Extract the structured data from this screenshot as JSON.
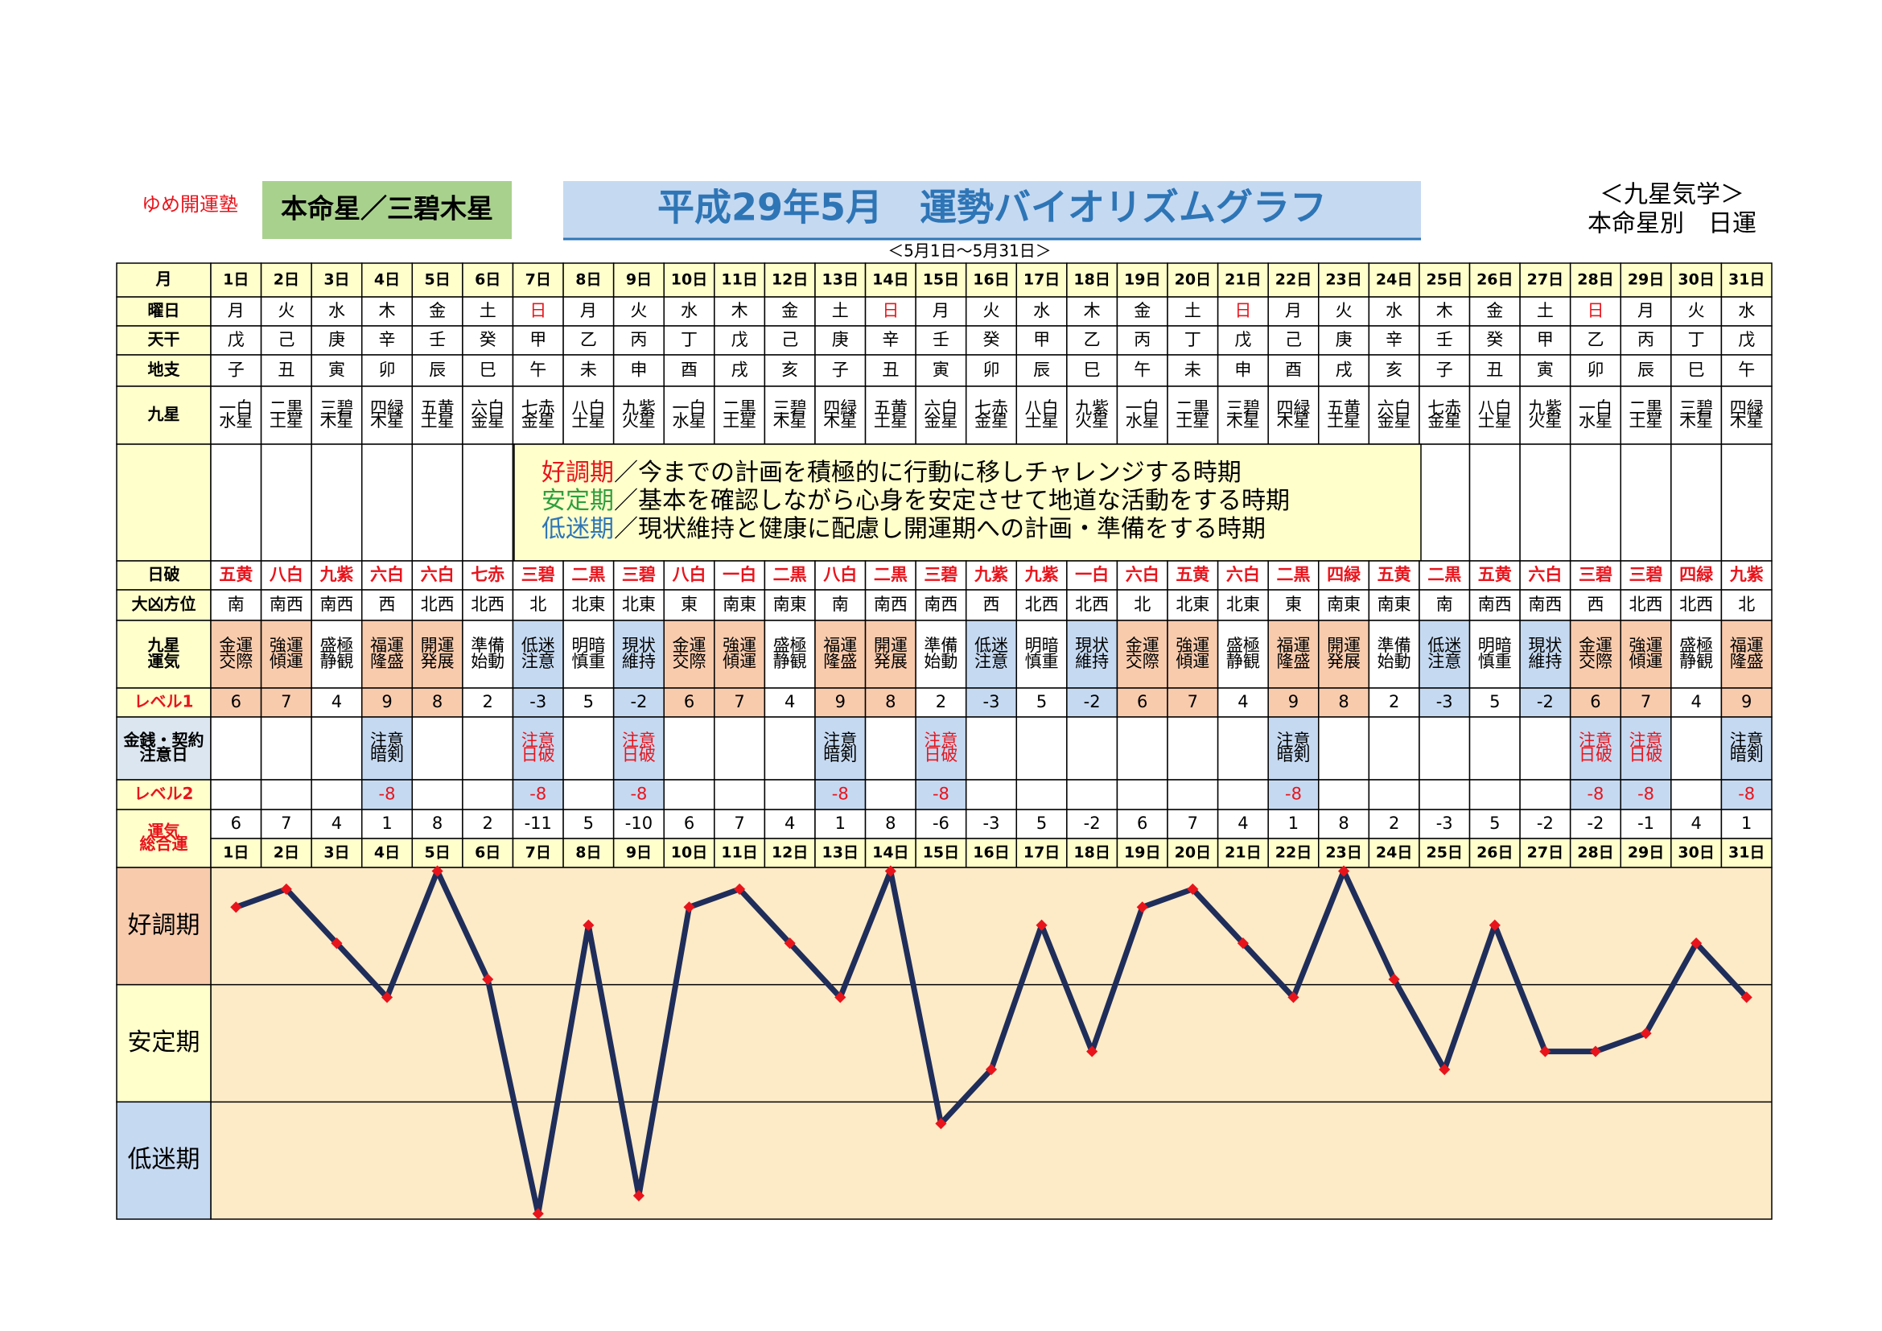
{
  "header": {
    "org": "ゆめ開運塾",
    "honmei": "本命星／三碧木星",
    "title": "平成29年5月　運勢バイオリズムグラフ",
    "period": "＜5月1日～5月31日＞",
    "system": "＜九星気学＞",
    "kind": "本命星別　日運"
  },
  "row_labels": [
    [
      "月"
    ],
    [
      "曜日"
    ],
    [
      "天干"
    ],
    [
      "地支"
    ],
    [
      "九星"
    ],
    [
      "日破"
    ],
    [
      "大凶方位"
    ],
    [
      "九星",
      "運気"
    ],
    [
      "レベル1"
    ],
    [
      "金銭・契約",
      "注意日"
    ],
    [
      "レベル2"
    ],
    [
      "運気",
      "総合運"
    ]
  ],
  "days": [
    "1日",
    "2日",
    "3日",
    "4日",
    "5日",
    "6日",
    "7日",
    "8日",
    "9日",
    "10日",
    "11日",
    "12日",
    "13日",
    "14日",
    "15日",
    "16日",
    "17日",
    "18日",
    "19日",
    "20日",
    "21日",
    "22日",
    "23日",
    "24日",
    "25日",
    "26日",
    "27日",
    "28日",
    "29日",
    "30日",
    "31日"
  ],
  "weekdays": [
    "月",
    "火",
    "水",
    "木",
    "金",
    "土",
    "日",
    "月",
    "火",
    "水",
    "木",
    "金",
    "土",
    "日",
    "月",
    "火",
    "水",
    "木",
    "金",
    "土",
    "日",
    "月",
    "火",
    "水",
    "木",
    "金",
    "土",
    "日",
    "月",
    "火",
    "水"
  ],
  "stems": [
    "戊",
    "己",
    "庚",
    "辛",
    "壬",
    "癸",
    "甲",
    "乙",
    "丙",
    "丁",
    "戊",
    "己",
    "庚",
    "辛",
    "壬",
    "癸",
    "甲",
    "乙",
    "丙",
    "丁",
    "戊",
    "己",
    "庚",
    "辛",
    "壬",
    "癸",
    "甲",
    "乙",
    "丙",
    "丁",
    "戊"
  ],
  "branches": [
    "子",
    "丑",
    "寅",
    "卯",
    "辰",
    "巳",
    "午",
    "未",
    "申",
    "酉",
    "戌",
    "亥",
    "子",
    "丑",
    "寅",
    "卯",
    "辰",
    "巳",
    "午",
    "未",
    "申",
    "酉",
    "戌",
    "亥",
    "子",
    "丑",
    "寅",
    "卯",
    "辰",
    "巳",
    "午"
  ],
  "stars": [
    [
      "一白",
      "水星"
    ],
    [
      "二黒",
      "土星"
    ],
    [
      "三碧",
      "木星"
    ],
    [
      "四緑",
      "木星"
    ],
    [
      "五黄",
      "土星"
    ],
    [
      "六白",
      "金星"
    ],
    [
      "七赤",
      "金星"
    ],
    [
      "八白",
      "土星"
    ],
    [
      "九紫",
      "火星"
    ],
    [
      "一白",
      "水星"
    ],
    [
      "二黒",
      "土星"
    ],
    [
      "三碧",
      "木星"
    ],
    [
      "四緑",
      "木星"
    ],
    [
      "五黄",
      "土星"
    ],
    [
      "六白",
      "金星"
    ],
    [
      "七赤",
      "金星"
    ],
    [
      "八白",
      "土星"
    ],
    [
      "九紫",
      "火星"
    ],
    [
      "一白",
      "水星"
    ],
    [
      "二黒",
      "土星"
    ],
    [
      "三碧",
      "木星"
    ],
    [
      "四緑",
      "木星"
    ],
    [
      "五黄",
      "土星"
    ],
    [
      "六白",
      "金星"
    ],
    [
      "七赤",
      "金星"
    ],
    [
      "八白",
      "土星"
    ],
    [
      "九紫",
      "火星"
    ],
    [
      "一白",
      "水星"
    ],
    [
      "二黒",
      "土星"
    ],
    [
      "三碧",
      "木星"
    ],
    [
      "四緑",
      "木星"
    ]
  ],
  "legend": [
    {
      "term": "好調期",
      "text": "／今までの計画を積極的に行動に移しチャレンジする時期",
      "color": "#e8141c"
    },
    {
      "term": "安定期",
      "text": "／基本を確認しながら心身を安定させて地道な活動をする時期",
      "color": "#2e9e3e"
    },
    {
      "term": "低迷期",
      "text": "／現状維持と健康に配慮し開運期への計画・準備をする時期",
      "color": "#2e75b6"
    }
  ],
  "nippa": [
    "五黄",
    "八白",
    "九紫",
    "六白",
    "六白",
    "七赤",
    "三碧",
    "二黒",
    "三碧",
    "八白",
    "一白",
    "二黒",
    "八白",
    "二黒",
    "三碧",
    "九紫",
    "九紫",
    "一白",
    "六白",
    "五黄",
    "六白",
    "二黒",
    "四緑",
    "五黄",
    "二黒",
    "五黄",
    "六白",
    "三碧",
    "三碧",
    "四緑",
    "九紫"
  ],
  "nippa_color": "#e8141c",
  "directions": [
    "南",
    "南西",
    "南西",
    "西",
    "北西",
    "北西",
    "北",
    "北東",
    "北東",
    "東",
    "南東",
    "南東",
    "南",
    "南西",
    "南西",
    "西",
    "北西",
    "北西",
    "北",
    "北東",
    "北東",
    "東",
    "南東",
    "南東",
    "南",
    "南西",
    "南西",
    "西",
    "北西",
    "北西",
    "北"
  ],
  "unki": [
    {
      "text": [
        "金運",
        "交際"
      ],
      "color": "#f8cbad"
    },
    {
      "text": [
        "強運",
        "傾運"
      ],
      "color": "#f8cbad"
    },
    {
      "text": [
        "盛極",
        "静観"
      ],
      "color": "#ffffff"
    },
    {
      "text": [
        "福運",
        "隆盛"
      ],
      "color": "#f8cbad"
    },
    {
      "text": [
        "開運",
        "発展"
      ],
      "color": "#f8cbad"
    },
    {
      "text": [
        "準備",
        "始動"
      ],
      "color": "#ffffff"
    },
    {
      "text": [
        "低迷",
        "注意"
      ],
      "color": "#c5d9f1"
    },
    {
      "text": [
        "明暗",
        "慎重"
      ],
      "color": "#ffffff"
    },
    {
      "text": [
        "現状",
        "維持"
      ],
      "color": "#c5d9f1"
    },
    {
      "text": [
        "金運",
        "交際"
      ],
      "color": "#f8cbad"
    },
    {
      "text": [
        "強運",
        "傾運"
      ],
      "color": "#f8cbad"
    },
    {
      "text": [
        "盛極",
        "静観"
      ],
      "color": "#ffffff"
    },
    {
      "text": [
        "福運",
        "隆盛"
      ],
      "color": "#f8cbad"
    },
    {
      "text": [
        "開運",
        "発展"
      ],
      "color": "#f8cbad"
    },
    {
      "text": [
        "準備",
        "始動"
      ],
      "color": "#ffffff"
    },
    {
      "text": [
        "低迷",
        "注意"
      ],
      "color": "#c5d9f1"
    },
    {
      "text": [
        "明暗",
        "慎重"
      ],
      "color": "#ffffff"
    },
    {
      "text": [
        "現状",
        "維持"
      ],
      "color": "#c5d9f1"
    },
    {
      "text": [
        "金運",
        "交際"
      ],
      "color": "#f8cbad"
    },
    {
      "text": [
        "強運",
        "傾運"
      ],
      "color": "#f8cbad"
    },
    {
      "text": [
        "盛極",
        "静観"
      ],
      "color": "#ffffff"
    },
    {
      "text": [
        "福運",
        "隆盛"
      ],
      "color": "#f8cbad"
    },
    {
      "text": [
        "開運",
        "発展"
      ],
      "color": "#f8cbad"
    },
    {
      "text": [
        "準備",
        "始動"
      ],
      "color": "#ffffff"
    },
    {
      "text": [
        "低迷",
        "注意"
      ],
      "color": "#c5d9f1"
    },
    {
      "text": [
        "明暗",
        "慎重"
      ],
      "color": "#ffffff"
    },
    {
      "text": [
        "現状",
        "維持"
      ],
      "color": "#c5d9f1"
    },
    {
      "text": [
        "金運",
        "交際"
      ],
      "color": "#f8cbad"
    },
    {
      "text": [
        "強運",
        "傾運"
      ],
      "color": "#f8cbad"
    },
    {
      "text": [
        "盛極",
        "静観"
      ],
      "color": "#ffffff"
    },
    {
      "text": [
        "福運",
        "隆盛"
      ],
      "color": "#f8cbad"
    }
  ],
  "level1": [
    6,
    7,
    4,
    9,
    8,
    2,
    -3,
    5,
    -2,
    6,
    7,
    4,
    9,
    8,
    2,
    -3,
    5,
    -2,
    6,
    7,
    4,
    9,
    8,
    2,
    -3,
    5,
    -2,
    6,
    7,
    4,
    9
  ],
  "caution": [
    null,
    null,
    null,
    {
      "text": [
        "注意",
        "暗剣"
      ],
      "color": "#000000"
    },
    null,
    null,
    {
      "text": [
        "注意",
        "日破"
      ],
      "color": "#e8141c"
    },
    null,
    {
      "text": [
        "注意",
        "日破"
      ],
      "color": "#e8141c"
    },
    null,
    null,
    null,
    {
      "text": [
        "注意",
        "暗剣"
      ],
      "color": "#000000"
    },
    null,
    {
      "text": [
        "注意",
        "日破"
      ],
      "color": "#e8141c"
    },
    null,
    null,
    null,
    null,
    null,
    null,
    {
      "text": [
        "注意",
        "暗剣"
      ],
      "color": "#000000"
    },
    null,
    null,
    null,
    null,
    null,
    {
      "text": [
        "注意",
        "日破"
      ],
      "color": "#e8141c"
    },
    {
      "text": [
        "注意",
        "日破"
      ],
      "color": "#e8141c"
    },
    null,
    {
      "text": [
        "注意",
        "暗剣"
      ],
      "color": "#000000"
    }
  ],
  "level2": [
    null,
    null,
    null,
    -8,
    null,
    null,
    -8,
    null,
    -8,
    null,
    null,
    null,
    -8,
    null,
    -8,
    null,
    null,
    null,
    null,
    null,
    null,
    -8,
    null,
    null,
    null,
    null,
    null,
    -8,
    -8,
    null,
    -8
  ],
  "chart_data": {
    "type": "line",
    "values": [
      6,
      7,
      4,
      1,
      8,
      2,
      -11,
      5,
      -10,
      6,
      7,
      4,
      1,
      8,
      -6,
      -3,
      5,
      -2,
      6,
      7,
      4,
      1,
      8,
      2,
      -3,
      5,
      -2,
      -2,
      -1,
      4,
      1
    ],
    "ylim": [
      -11.3,
      8.2
    ],
    "color": "#1f2d5a",
    "marker_color": "#e8141c",
    "bands": [
      {
        "label": "好調期",
        "color": "#f8cbad"
      },
      {
        "label": "安定期",
        "color": "#ffffcc"
      },
      {
        "label": "低迷期",
        "color": "#c5d9f1"
      }
    ],
    "plot_color": "#fdebc8"
  }
}
